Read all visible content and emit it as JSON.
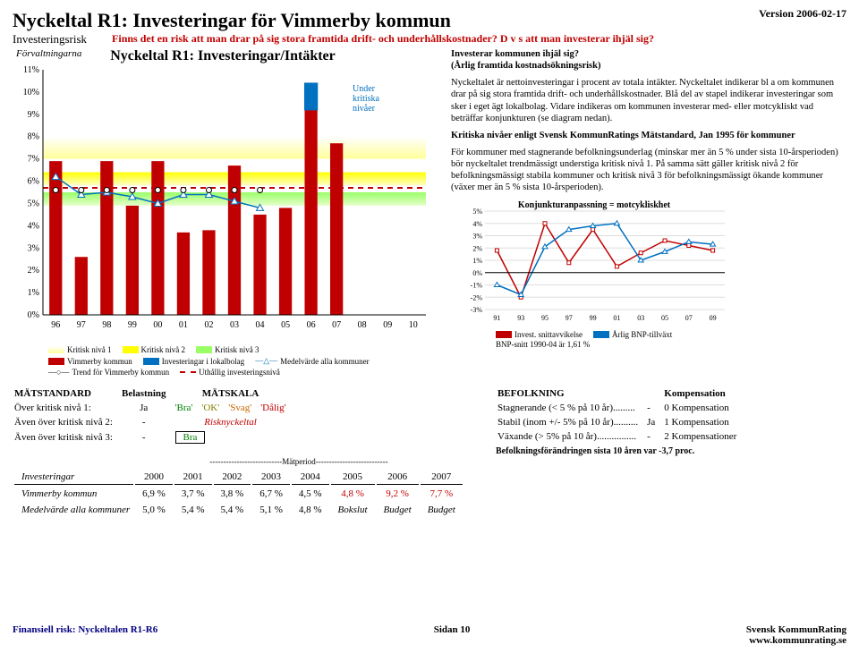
{
  "version": "Version 2006-02-17",
  "title": "Nyckeltal R1: Investeringar för Vimmerby kommun",
  "subLeft": "Investeringsrisk",
  "subCenter": "Finns det en risk att man drar på sig stora framtida drift- och underhållskostnader? D v s att man investerar ihjäl sig?",
  "chart": {
    "title": "Nyckeltal R1: Investeringar/Intäkter",
    "forv": "Förvaltningarna",
    "under": "Under\nkritiska\nnivåer",
    "ymin": 0,
    "ymax": 11,
    "ystep": 1,
    "xlabels": [
      "96",
      "97",
      "98",
      "99",
      "00",
      "01",
      "02",
      "03",
      "04",
      "05",
      "06",
      "07",
      "08",
      "09",
      "10"
    ],
    "crit1": 7.0,
    "crit2": 5.8,
    "crit3": 4.9,
    "bars_vimmerby": [
      6.9,
      2.6,
      6.9,
      4.9,
      6.9,
      3.7,
      3.8,
      6.7,
      4.5,
      4.8,
      9.2,
      7.7,
      null,
      null,
      null
    ],
    "bars_lokal_color": "#0070c0",
    "bars_lokal": [
      null,
      null,
      null,
      null,
      null,
      null,
      null,
      null,
      null,
      null,
      1.2,
      null,
      null,
      null,
      null
    ],
    "medel": [
      6.2,
      5.4,
      5.5,
      5.3,
      5.0,
      5.4,
      5.4,
      5.1,
      4.8,
      null,
      null,
      null,
      null,
      null,
      null
    ],
    "trend": 5.6,
    "colors": {
      "bar": "#c00000",
      "crit_y": "#ffff00",
      "crit_g": "#99ff66",
      "medel": "#0070c0",
      "trend": "#000"
    }
  },
  "rightText": {
    "h1": "Investerar kommunen ihjäl sig?",
    "h1b": "(Årlig framtida kostnadsökningsrisk)",
    "p1": "Nyckeltalet är nettoinvesteringar i procent av totala intäkter. Nyckeltalet indikerar bl a om kommunen drar på sig stora framtida drift- och underhållskostnader. Blå del av stapel indikerar investeringar som sker i eget ägt lokalbolag. Vidare indikeras om kommunen investerar med- eller motcykliskt vad beträffar konjunkturen (se diagram nedan).",
    "h2": "Kritiska nivåer enligt Svensk KommunRatings Mätstandard, Jan 1995 för kommuner",
    "p2": "För kommuner med stagnerande befolkningsunderlag (minskar mer än 5 % under sista 10-årsperioden) bör nyckeltalet trendmässigt understiga kritisk nivå 1. På samma sätt gäller kritisk nivå 2 för befolkningsmässigt stabila kommuner och kritisk nivå 3 för befolkningsmässigt ökande kommuner (växer mer än 5 % sista 10-årsperioden)."
  },
  "smallChart": {
    "title": "Konjunkturanpassning = motcykliskhet",
    "ymin": -3,
    "ymax": 5,
    "ystep": 1,
    "xlabels": [
      "91",
      "93",
      "95",
      "97",
      "99",
      "01",
      "03",
      "05",
      "07",
      "09"
    ],
    "series1": [
      1.8,
      -2.0,
      4.0,
      0.8,
      3.5,
      0.5,
      1.6,
      2.6,
      2.2,
      1.8
    ],
    "series2": [
      -1.0,
      -1.8,
      2.1,
      3.5,
      3.8,
      4.0,
      1.0,
      1.7,
      2.5,
      2.3
    ],
    "c1": "#c00000",
    "c2": "#0070c0",
    "leg1": "Invest. snittavvikelse",
    "leg2": "Årlig BNP-tillväxt",
    "foot": "BNP-snitt 1990-04 är 1,61 %"
  },
  "legend": {
    "k1": "Kritisk nivå 1",
    "k2": "Kritisk nivå 2",
    "k3": "Kritisk nivå 3",
    "a": "Vimmerby kommun",
    "b": "Investeringar i lokalbolag",
    "c": "Medelvärde alla kommuner",
    "d": "Trend för Vimmerby kommun",
    "e": "Uthållig investeringsnivå"
  },
  "mat": {
    "h1": "MÄTSTANDARD",
    "h2": "Belastning",
    "h3": "MÄTSKALA",
    "r1a": "Över kritisk nivå 1:",
    "r1b": "Ja",
    "r2a": "Även över kritisk nivå 2:",
    "r2b": "-",
    "r3a": "Även över kritisk nivå 3:",
    "r3b": "-",
    "risk": "Risknyckeltal",
    "bra": "'Bra'",
    "ok": "'OK'",
    "svag": "'Svag'",
    "dalig": "'Dålig'",
    "box": "Bra"
  },
  "bef": {
    "h1": "BEFOLKNING",
    "h2": "Kompensation",
    "r1": "Stagnerande (< 5 % på 10 år).........",
    "r1b": "-",
    "r1c": "0 Kompensation",
    "r2": "Stabil (inom +/- 5% på 10 år)..........",
    "r2b": "Ja",
    "r2c": "1 Kompensation",
    "r3": "Växande (> 5% på 10 år)................",
    "r3b": "-",
    "r3c": "2 Kompensationer",
    "foot": "Befolkningsförändringen sista 10 åren var -3,7 proc."
  },
  "inv": {
    "matperiod": "---------------------------Mätperiod---------------------------",
    "head": [
      "",
      "2000",
      "2001",
      "2002",
      "2003",
      "2004",
      "2005",
      "2006",
      "2007"
    ],
    "lab1": "Investeringar",
    "r1": "Vimmerby kommun",
    "v1": [
      "6,9 %",
      "3,7 %",
      "3,8 %",
      "6,7 %",
      "4,5 %",
      "4,8 %",
      "9,2 %",
      "7,7 %"
    ],
    "r2": "Medelvärde alla kommuner",
    "v2": [
      "5,0 %",
      "5,4 %",
      "5,4 %",
      "5,1 %",
      "4,8 %",
      "Bokslut",
      "Budget",
      "Budget"
    ]
  },
  "footer": {
    "l": "Finansiell risk: Nyckeltalen R1-R6",
    "c": "Sidan 10",
    "r1": "Svensk KommunRating",
    "r2": "www.kommunrating.se"
  }
}
